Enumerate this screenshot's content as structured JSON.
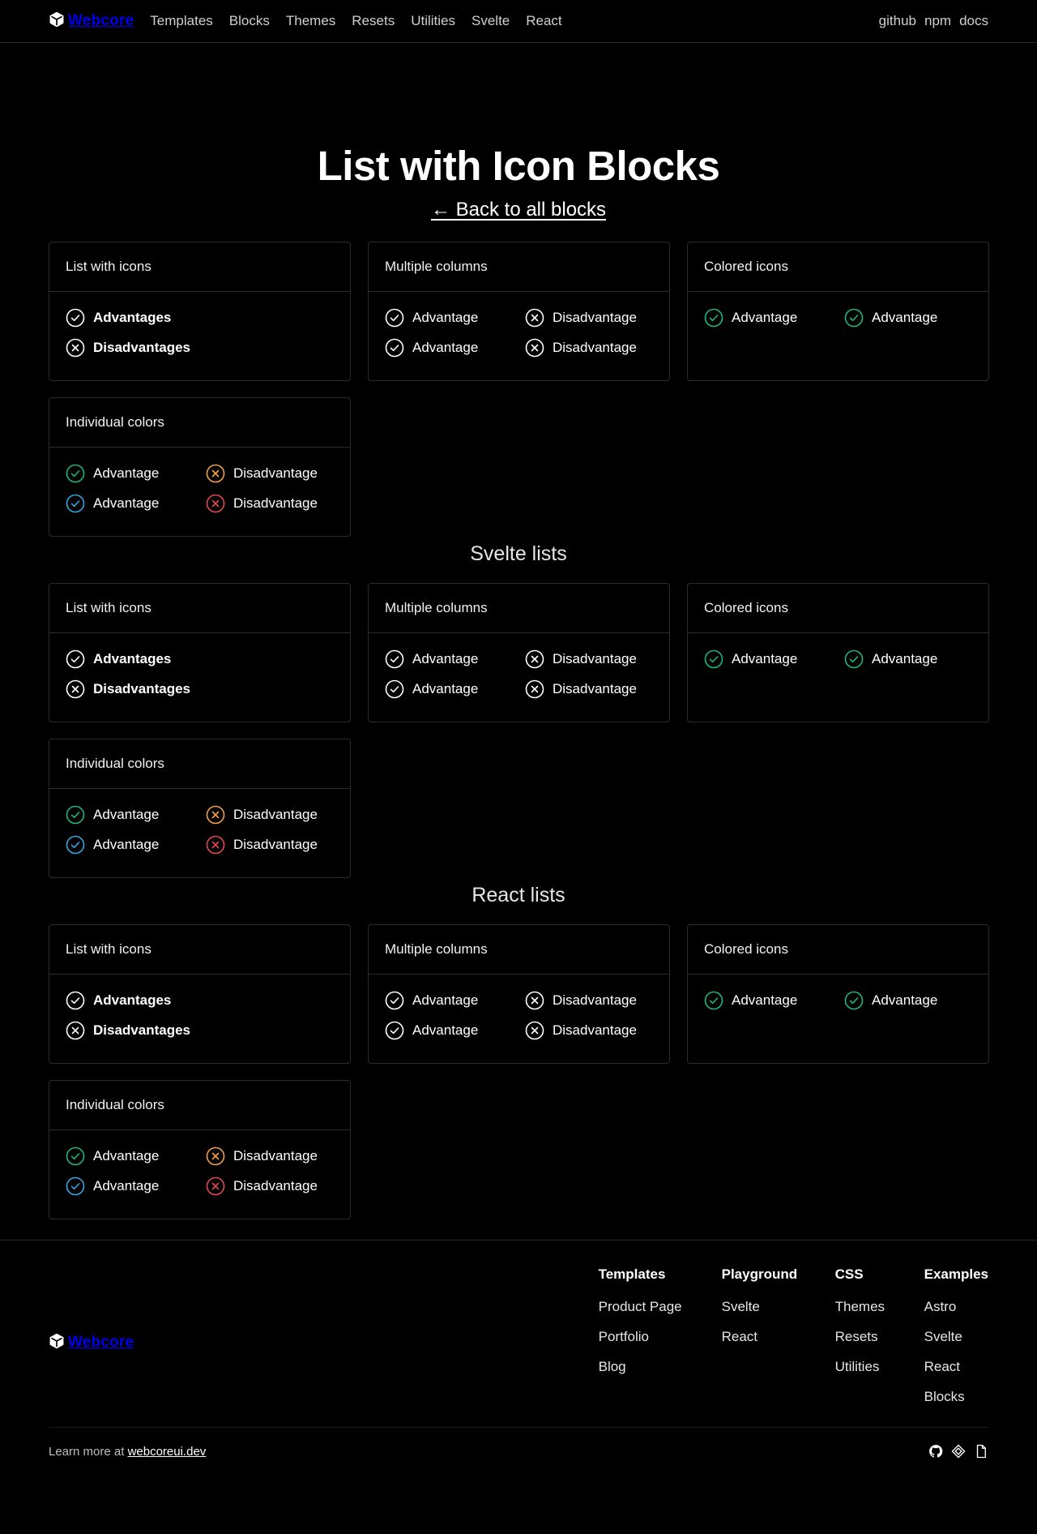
{
  "header": {
    "brand": "Webcore",
    "nav": [
      "Templates",
      "Blocks",
      "Themes",
      "Resets",
      "Utilities",
      "Svelte",
      "React"
    ],
    "right_links": [
      "github",
      "npm",
      "docs"
    ]
  },
  "hero": {
    "title": "List with Icon Blocks",
    "back_link": "← Back to all blocks"
  },
  "sections": [
    {
      "title": "",
      "cards": [
        {
          "title": "List with icons",
          "items": [
            {
              "icon": "check-circle-icon",
              "label": "Advantages"
            },
            {
              "icon": "x-circle-icon",
              "label": "Disadvantages"
            }
          ]
        },
        {
          "title": "Multiple columns",
          "items": [
            {
              "icon": "check-circle-icon",
              "label": "Advantage"
            },
            {
              "icon": "x-circle-icon",
              "label": "Disadvantage"
            },
            {
              "icon": "check-circle-icon",
              "label": "Advantage"
            },
            {
              "icon": "x-circle-icon",
              "label": "Disadvantage"
            }
          ]
        },
        {
          "title": "Colored icons",
          "items": [
            {
              "icon": "check-circle-icon",
              "label": "Advantage"
            },
            {
              "icon": "check-circle-icon",
              "label": "Advantage"
            }
          ]
        },
        {
          "title": "Individual colors",
          "items": [
            {
              "icon": "check-circle-icon",
              "label": "Advantage"
            },
            {
              "icon": "x-circle-icon",
              "label": "Disadvantage"
            },
            {
              "icon": "check-circle-icon",
              "label": "Advantage"
            },
            {
              "icon": "x-circle-icon",
              "label": "Disadvantage"
            }
          ]
        }
      ]
    },
    {
      "title": "Svelte lists",
      "cards": [
        {
          "title": "List with icons",
          "items": [
            {
              "icon": "check-circle-icon",
              "label": "Advantages"
            },
            {
              "icon": "x-circle-icon",
              "label": "Disadvantages"
            }
          ]
        },
        {
          "title": "Multiple columns",
          "items": [
            {
              "icon": "check-circle-icon",
              "label": "Advantage"
            },
            {
              "icon": "x-circle-icon",
              "label": "Disadvantage"
            },
            {
              "icon": "check-circle-icon",
              "label": "Advantage"
            },
            {
              "icon": "x-circle-icon",
              "label": "Disadvantage"
            }
          ]
        },
        {
          "title": "Colored icons",
          "items": [
            {
              "icon": "check-circle-icon",
              "label": "Advantage"
            },
            {
              "icon": "check-circle-icon",
              "label": "Advantage"
            }
          ]
        },
        {
          "title": "Individual colors",
          "items": [
            {
              "icon": "check-circle-icon",
              "label": "Advantage"
            },
            {
              "icon": "x-circle-icon",
              "label": "Disadvantage"
            },
            {
              "icon": "check-circle-icon",
              "label": "Advantage"
            },
            {
              "icon": "x-circle-icon",
              "label": "Disadvantage"
            }
          ]
        }
      ]
    },
    {
      "title": "React lists",
      "cards": [
        {
          "title": "List with icons",
          "items": [
            {
              "icon": "check-circle-icon",
              "label": "Advantages"
            },
            {
              "icon": "x-circle-icon",
              "label": "Disadvantages"
            }
          ]
        },
        {
          "title": "Multiple columns",
          "items": [
            {
              "icon": "check-circle-icon",
              "label": "Advantage"
            },
            {
              "icon": "x-circle-icon",
              "label": "Disadvantage"
            },
            {
              "icon": "check-circle-icon",
              "label": "Advantage"
            },
            {
              "icon": "x-circle-icon",
              "label": "Disadvantage"
            }
          ]
        },
        {
          "title": "Colored icons",
          "items": [
            {
              "icon": "check-circle-icon",
              "label": "Advantage"
            },
            {
              "icon": "check-circle-icon",
              "label": "Advantage"
            }
          ]
        },
        {
          "title": "Individual colors",
          "items": [
            {
              "icon": "check-circle-icon",
              "label": "Advantage"
            },
            {
              "icon": "x-circle-icon",
              "label": "Disadvantage"
            },
            {
              "icon": "check-circle-icon",
              "label": "Advantage"
            },
            {
              "icon": "x-circle-icon",
              "label": "Disadvantage"
            }
          ]
        }
      ]
    }
  ],
  "colors": {
    "default_icon": "#ffffff",
    "green": "#20b483",
    "orange": "#f5a340",
    "blue": "#3aa6e0",
    "red": "#e5484d"
  },
  "footer": {
    "brand": "Webcore",
    "columns": [
      {
        "title": "Templates",
        "links": [
          "Product Page",
          "Portfolio",
          "Blog"
        ]
      },
      {
        "title": "Playground",
        "links": [
          "Svelte",
          "React"
        ]
      },
      {
        "title": "CSS",
        "links": [
          "Themes",
          "Resets",
          "Utilities"
        ]
      },
      {
        "title": "Examples",
        "links": [
          "Astro",
          "Svelte",
          "React",
          "Blocks"
        ]
      }
    ],
    "learn_prefix": "Learn more at",
    "learn_link": "webcoreui.dev",
    "social_icons": [
      "github-icon",
      "npm-icon",
      "docs-icon"
    ]
  }
}
